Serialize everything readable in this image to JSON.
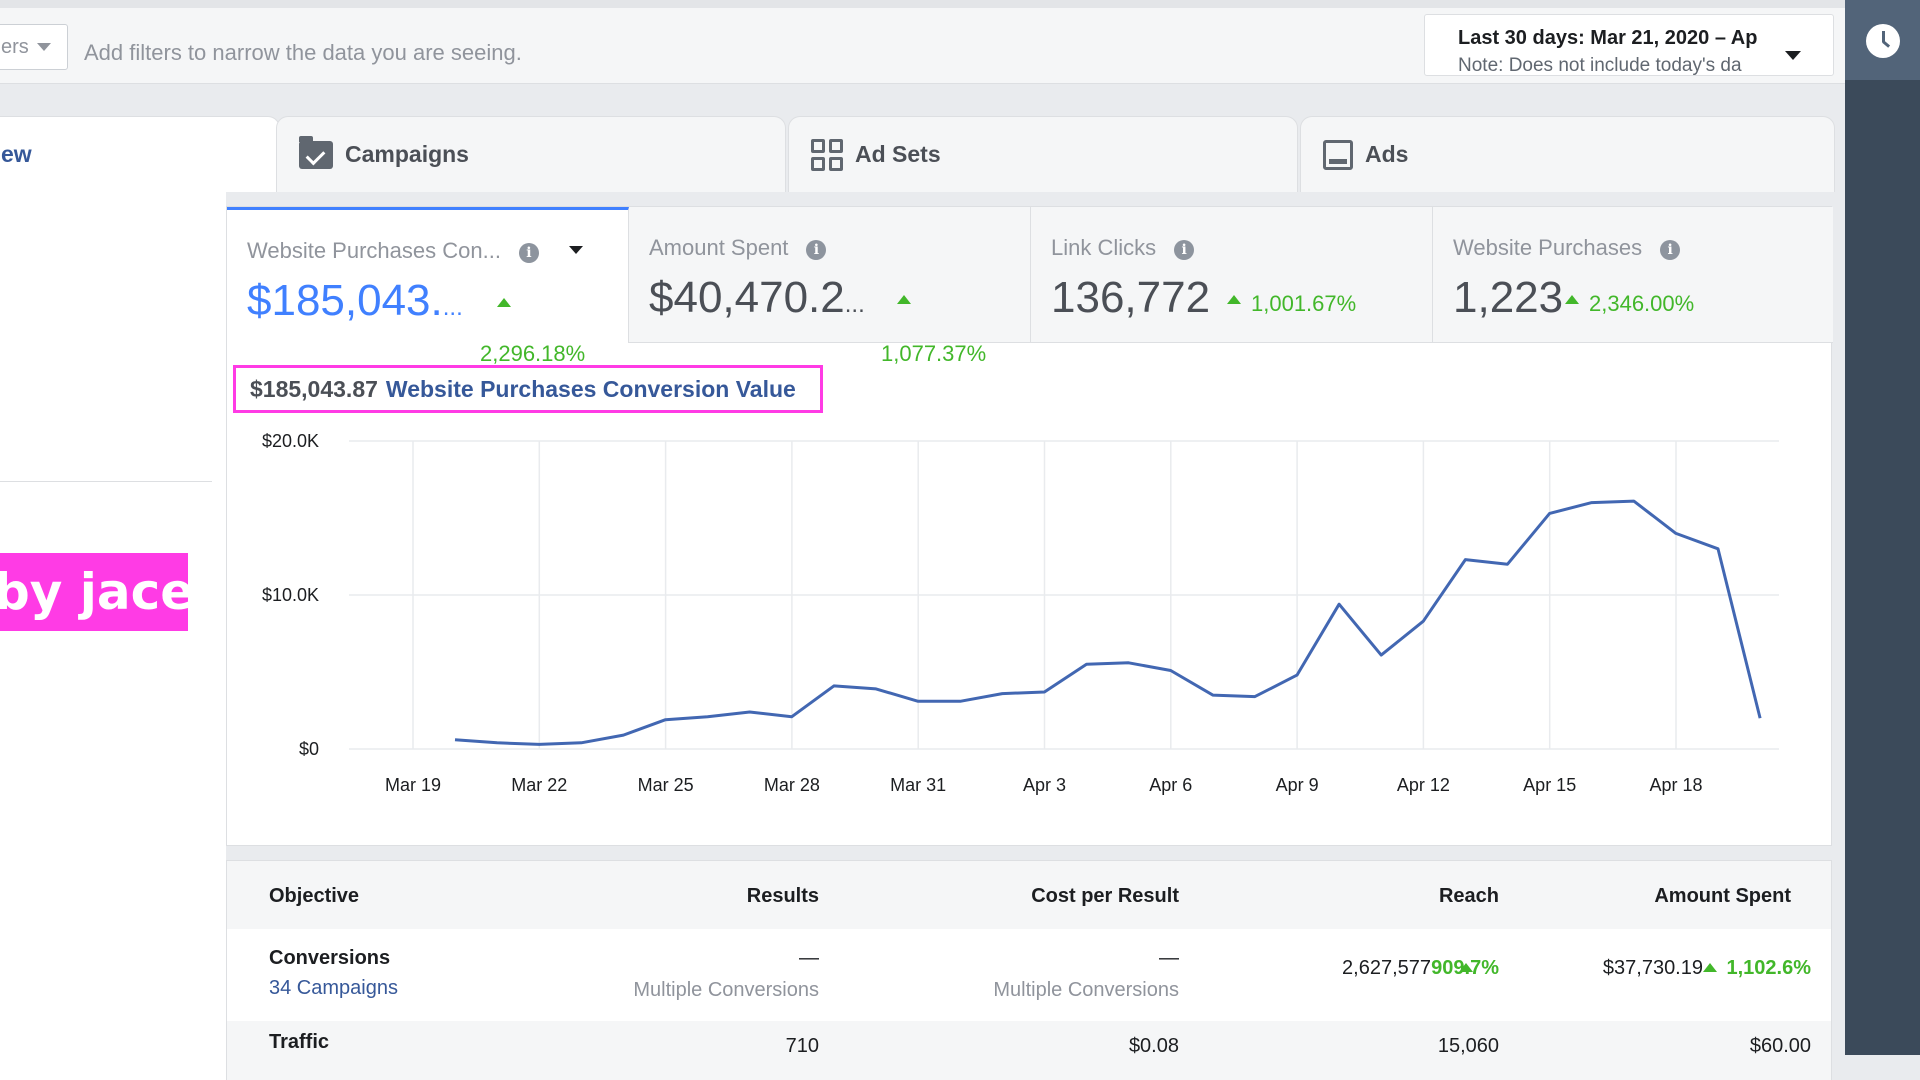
{
  "filter_bar": {
    "chip_label": "ers",
    "placeholder": "Add filters to narrow the data you are seeing.",
    "date_range": "Last 30 days: Mar 21, 2020 – Ap",
    "date_note": "Note: Does not include today's da"
  },
  "tabs": [
    {
      "label": "ew",
      "icon": "none"
    },
    {
      "label": "Campaigns",
      "icon": "folder-check-icon"
    },
    {
      "label": "Ad Sets",
      "icon": "grid-icon"
    },
    {
      "label": "Ads",
      "icon": "ad-icon"
    }
  ],
  "watermark": "by jace",
  "metrics": [
    {
      "label": "Website Purchases Con...",
      "value": "$185,043.",
      "ellipsis": "...",
      "change": "2,296.18%"
    },
    {
      "label": "Amount Spent",
      "value": "$40,470.2",
      "ellipsis": "...",
      "change": "1,077.37%"
    },
    {
      "label": "Link Clicks",
      "value": "136,772",
      "change": "1,001.67%"
    },
    {
      "label": "Website Purchases",
      "value": "1,223",
      "change": "2,346.00%"
    }
  ],
  "legend": {
    "value": "$185,043.87",
    "name": "Website Purchases Conversion Value",
    "highlight_color": "#ff3be5"
  },
  "chart_data": {
    "type": "line",
    "x": [
      "Mar 20",
      "Mar 21",
      "Mar 22",
      "Mar 23",
      "Mar 24",
      "Mar 25",
      "Mar 26",
      "Mar 27",
      "Mar 28",
      "Mar 29",
      "Mar 30",
      "Mar 31",
      "Apr 1",
      "Apr 2",
      "Apr 3",
      "Apr 4",
      "Apr 5",
      "Apr 6",
      "Apr 7",
      "Apr 8",
      "Apr 9",
      "Apr 10",
      "Apr 11",
      "Apr 12",
      "Apr 13",
      "Apr 14",
      "Apr 15",
      "Apr 16",
      "Apr 17",
      "Apr 18",
      "Apr 19",
      "Apr 20"
    ],
    "series": [
      {
        "values": [
          600,
          400,
          300,
          400,
          900,
          1900,
          2100,
          2400,
          2100,
          4100,
          3900,
          3100,
          3100,
          3600,
          3700,
          5500,
          5600,
          5100,
          3500,
          3400,
          4800,
          9400,
          6100,
          8300,
          12300,
          12000,
          15300,
          16000,
          16100,
          14000,
          13000,
          2000
        ],
        "color": "#4267b2"
      }
    ],
    "x_tick_labels": [
      "Mar 19",
      "Mar 22",
      "Mar 25",
      "Mar 28",
      "Mar 31",
      "Apr 3",
      "Apr 6",
      "Apr 9",
      "Apr 12",
      "Apr 15",
      "Apr 18"
    ],
    "y_tick_labels": [
      "$20.0K",
      "$10.0K",
      "$0"
    ],
    "y_ticks": [
      20000,
      10000,
      0
    ],
    "ylim": [
      0,
      20000
    ],
    "grid": true
  },
  "table": {
    "headers": [
      "Objective",
      "Results",
      "Cost per Result",
      "Reach",
      "Amount Spent"
    ],
    "rows": [
      {
        "name": "Conversions",
        "link": "34 Campaigns",
        "results": "—",
        "results_sub": "Multiple Conversions",
        "cost": "—",
        "cost_sub": "Multiple Conversions",
        "reach": "2,627,577",
        "reach_change": "909.7%",
        "spent": "$37,730.19",
        "spent_change": "1,102.6%"
      },
      {
        "name": "Traffic",
        "results": "710",
        "cost": "$0.08",
        "reach": "15,060",
        "spent": "$60.00"
      }
    ]
  }
}
